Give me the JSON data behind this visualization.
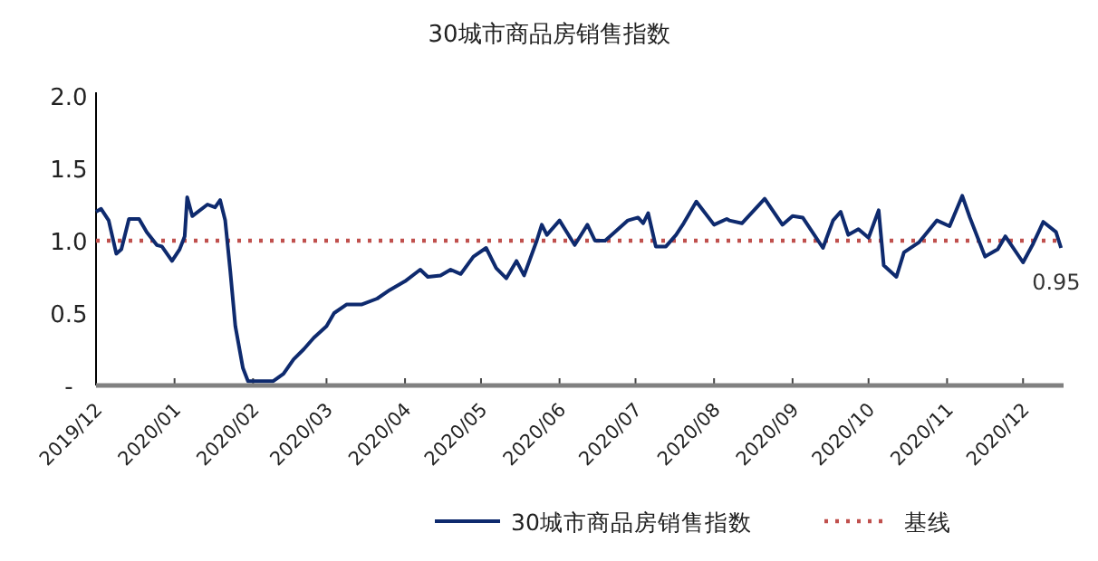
{
  "chart_data": {
    "type": "line",
    "title": "30城市商品房销售指数",
    "x": [
      "2019-12-01",
      "2019-12-03",
      "2019-12-06",
      "2019-12-09",
      "2019-12-11",
      "2019-12-14",
      "2019-12-18",
      "2019-12-21",
      "2019-12-25",
      "2019-12-27",
      "2019-12-31",
      "2020-01-03",
      "2020-01-05",
      "2020-01-06",
      "2020-01-08",
      "2020-01-14",
      "2020-01-17",
      "2020-01-19",
      "2020-01-21",
      "2020-01-23",
      "2020-01-25",
      "2020-01-28",
      "2020-01-30",
      "2020-02-09",
      "2020-02-13",
      "2020-02-17",
      "2020-02-21",
      "2020-02-25",
      "2020-03-01",
      "2020-03-04",
      "2020-03-09",
      "2020-03-15",
      "2020-03-21",
      "2020-03-26",
      "2020-04-01",
      "2020-04-07",
      "2020-04-10",
      "2020-04-15",
      "2020-04-19",
      "2020-04-23",
      "2020-04-28",
      "2020-05-03",
      "2020-05-07",
      "2020-05-11",
      "2020-05-15",
      "2020-05-18",
      "2020-05-23",
      "2020-05-25",
      "2020-05-27",
      "2020-06-01",
      "2020-06-07",
      "2020-06-12",
      "2020-06-15",
      "2020-06-19",
      "2020-06-28",
      "2020-07-02",
      "2020-07-04",
      "2020-07-06",
      "2020-07-09",
      "2020-07-13",
      "2020-07-17",
      "2020-07-20",
      "2020-07-25",
      "2020-08-01",
      "2020-08-06",
      "2020-08-07",
      "2020-08-12",
      "2020-08-21",
      "2020-08-28",
      "2020-09-01",
      "2020-09-05",
      "2020-09-13",
      "2020-09-17",
      "2020-09-20",
      "2020-09-23",
      "2020-09-27",
      "2020-10-01",
      "2020-10-05",
      "2020-10-07",
      "2020-10-12",
      "2020-10-15",
      "2020-10-21",
      "2020-10-28",
      "2020-11-02",
      "2020-11-07",
      "2020-11-10",
      "2020-11-16",
      "2020-11-21",
      "2020-11-24",
      "2020-12-01",
      "2020-12-05",
      "2020-12-09",
      "2020-12-14",
      "2020-12-16"
    ],
    "series": [
      {
        "name": "30城市商品房销售指数",
        "color": "#0e2a6e",
        "values": [
          1.2,
          1.22,
          1.14,
          0.91,
          0.94,
          1.15,
          1.15,
          1.06,
          0.97,
          0.96,
          0.86,
          0.94,
          1.03,
          1.3,
          1.17,
          1.25,
          1.23,
          1.28,
          1.14,
          0.79,
          0.41,
          0.12,
          0.03,
          0.03,
          0.08,
          0.18,
          0.25,
          0.33,
          0.41,
          0.5,
          0.56,
          0.56,
          0.6,
          0.66,
          0.72,
          0.8,
          0.75,
          0.76,
          0.8,
          0.77,
          0.89,
          0.95,
          0.81,
          0.74,
          0.86,
          0.76,
          1.0,
          1.11,
          1.04,
          1.14,
          0.97,
          1.11,
          1.0,
          1.0,
          1.14,
          1.16,
          1.12,
          1.19,
          0.96,
          0.96,
          1.04,
          1.12,
          1.27,
          1.11,
          1.15,
          1.14,
          1.12,
          1.29,
          1.11,
          1.17,
          1.16,
          0.95,
          1.14,
          1.2,
          1.04,
          1.08,
          1.02,
          1.21,
          0.83,
          0.75,
          0.92,
          0.99,
          1.14,
          1.1,
          1.31,
          1.16,
          0.89,
          0.94,
          1.03,
          0.85,
          0.98,
          1.13,
          1.06,
          0.95
        ]
      }
    ],
    "xlim": [
      "2019-12-01",
      "2020-12-17"
    ],
    "xticks": [
      {
        "value": "2019-12-01",
        "label": "2019/12"
      },
      {
        "value": "2020-01-01",
        "label": "2020/01"
      },
      {
        "value": "2020-02-01",
        "label": "2020/02"
      },
      {
        "value": "2020-03-01",
        "label": "2020/03"
      },
      {
        "value": "2020-04-01",
        "label": "2020/04"
      },
      {
        "value": "2020-05-01",
        "label": "2020/05"
      },
      {
        "value": "2020-06-01",
        "label": "2020/06"
      },
      {
        "value": "2020-07-01",
        "label": "2020/07"
      },
      {
        "value": "2020-08-01",
        "label": "2020/08"
      },
      {
        "value": "2020-09-01",
        "label": "2020/09"
      },
      {
        "value": "2020-10-01",
        "label": "2020/10"
      },
      {
        "value": "2020-11-01",
        "label": "2020/11"
      },
      {
        "value": "2020-12-01",
        "label": "2020/12"
      }
    ],
    "ylim": [
      0,
      2
    ],
    "yticks": [
      {
        "value": 0,
        "label": "-"
      },
      {
        "value": 0.5,
        "label": "0.5"
      },
      {
        "value": 1,
        "label": "1.0"
      },
      {
        "value": 1.5,
        "label": "1.5"
      },
      {
        "value": 2,
        "label": "2.0"
      }
    ],
    "ref_lines": [
      {
        "axis": "y",
        "value": 1,
        "label": "基线",
        "color": "#c0504d",
        "line_style": "dotted"
      }
    ],
    "annotations": [
      {
        "text": "0.95",
        "x": "2020-12-16",
        "y": 0.95
      }
    ],
    "legend": "bottom",
    "grid": false,
    "marker": "none",
    "line_style": "solid"
  }
}
